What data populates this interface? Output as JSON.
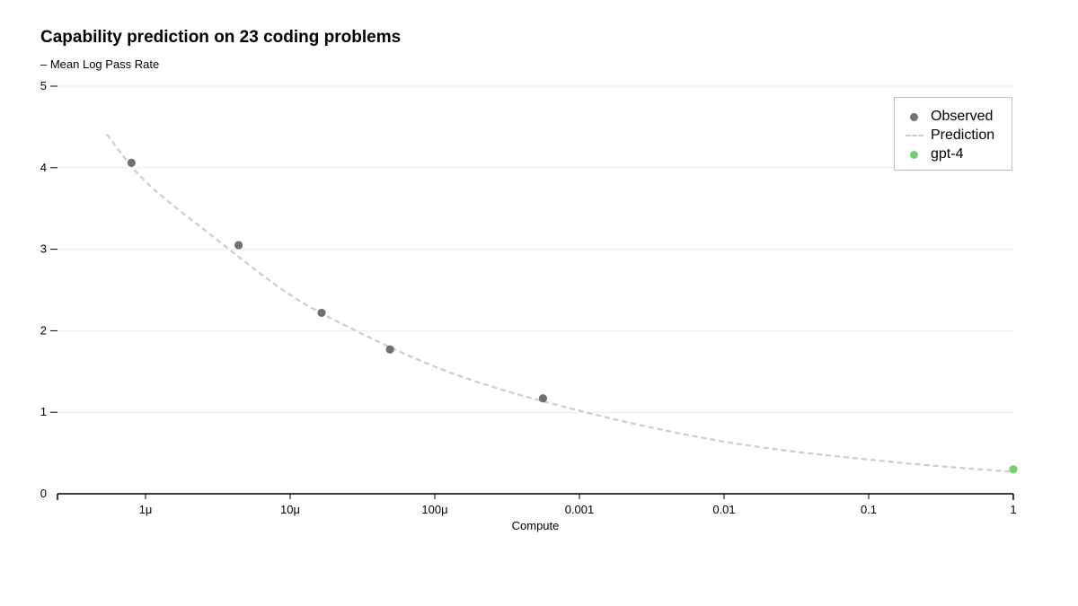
{
  "chart_data": {
    "type": "scatter",
    "title": "Capability prediction on 23 coding problems",
    "subtitle": "– Mean Log Pass Rate",
    "xlabel": "Compute",
    "ylabel": "",
    "xscale": "log",
    "xlim": [
      3e-07,
      1
    ],
    "ylim": [
      0,
      5
    ],
    "x_ticks": [
      {
        "value": 1e-06,
        "label": "1μ"
      },
      {
        "value": 1e-05,
        "label": "10μ"
      },
      {
        "value": 0.0001,
        "label": "100μ"
      },
      {
        "value": 0.001,
        "label": "0.001"
      },
      {
        "value": 0.01,
        "label": "0.01"
      },
      {
        "value": 0.1,
        "label": "0.1"
      },
      {
        "value": 1,
        "label": "1"
      }
    ],
    "y_ticks": [
      {
        "value": 0,
        "label": "0"
      },
      {
        "value": 1,
        "label": "1"
      },
      {
        "value": 2,
        "label": "2"
      },
      {
        "value": 3,
        "label": "3"
      },
      {
        "value": 4,
        "label": "4"
      },
      {
        "value": 5,
        "label": "5"
      }
    ],
    "grid": "horizontal",
    "legend_position": "top-right",
    "series": [
      {
        "name": "Observed",
        "kind": "scatter",
        "color": "#707070",
        "points": [
          {
            "x": 8e-07,
            "y": 4.06
          },
          {
            "x": 4.4e-06,
            "y": 3.05
          },
          {
            "x": 1.65e-05,
            "y": 2.22
          },
          {
            "x": 4.9e-05,
            "y": 1.77
          },
          {
            "x": 0.00056,
            "y": 1.17
          }
        ]
      },
      {
        "name": "Prediction",
        "kind": "dashed-line",
        "color": "#cccccc",
        "points": [
          {
            "x": 5.4e-07,
            "y": 4.41
          },
          {
            "x": 1e-06,
            "y": 3.83
          },
          {
            "x": 3e-06,
            "y": 3.14
          },
          {
            "x": 1e-05,
            "y": 2.44
          },
          {
            "x": 3e-05,
            "y": 1.98
          },
          {
            "x": 0.0001,
            "y": 1.56
          },
          {
            "x": 0.0003,
            "y": 1.27
          },
          {
            "x": 0.001,
            "y": 1.02
          },
          {
            "x": 0.003,
            "y": 0.82
          },
          {
            "x": 0.01,
            "y": 0.64
          },
          {
            "x": 0.03,
            "y": 0.52
          },
          {
            "x": 0.1,
            "y": 0.42
          },
          {
            "x": 0.3,
            "y": 0.34
          },
          {
            "x": 1,
            "y": 0.27
          }
        ]
      },
      {
        "name": "gpt-4",
        "kind": "scatter",
        "color": "#6fd16a",
        "points": [
          {
            "x": 1,
            "y": 0.3
          }
        ]
      }
    ]
  }
}
